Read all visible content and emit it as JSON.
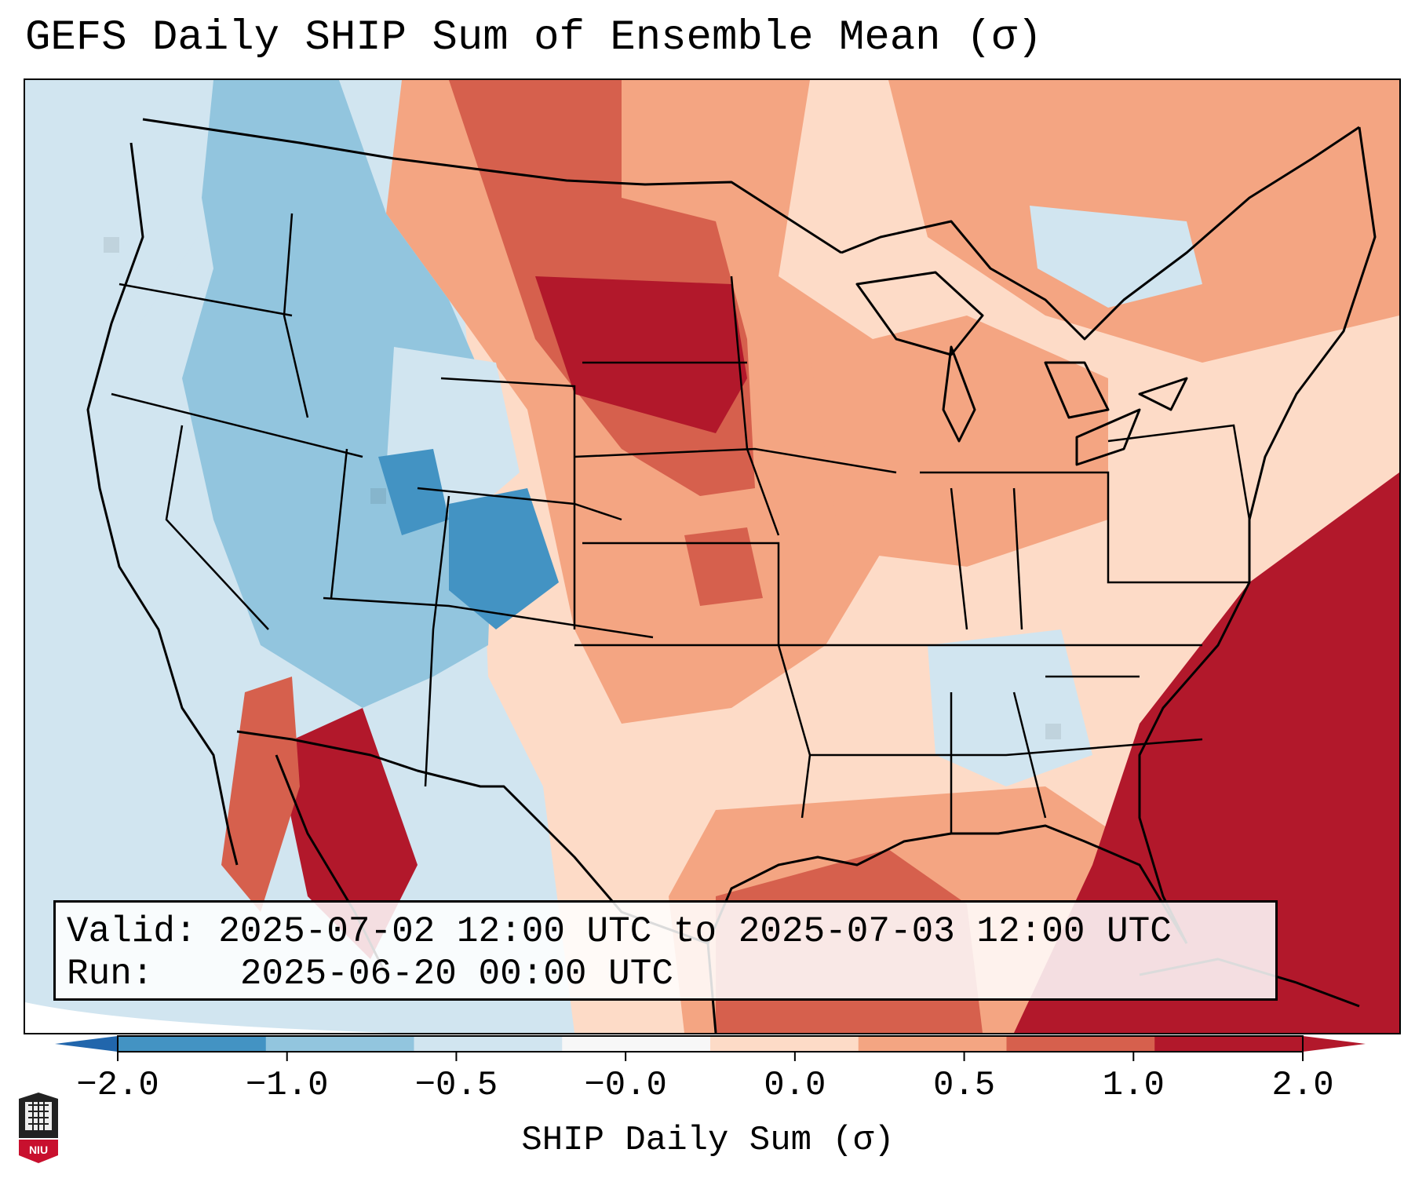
{
  "title": "GEFS Daily SHIP Sum of Ensemble Mean (σ)",
  "info": {
    "valid_label": "Valid:",
    "valid_value": "2025-07-02 12:00 UTC to 2025-07-03 12:00 UTC",
    "run_label": "Run:",
    "run_value": "2025-06-20 00:00 UTC"
  },
  "colorbar": {
    "label": "SHIP Daily Sum (σ)",
    "ticks": [
      "−2.0",
      "−1.0",
      "−0.5",
      "−0.0",
      "0.0",
      "0.5",
      "1.0",
      "2.0"
    ],
    "colors": [
      "#4393c3",
      "#92c5de",
      "#d1e5f0",
      "#f7f7f7",
      "#fddbc7",
      "#f4a582",
      "#d6604d",
      "#b2182b"
    ],
    "under_color": "#2166ac",
    "over_color": "#b2182b"
  },
  "logo": {
    "text": "NIU",
    "color": "#c8102e"
  }
}
